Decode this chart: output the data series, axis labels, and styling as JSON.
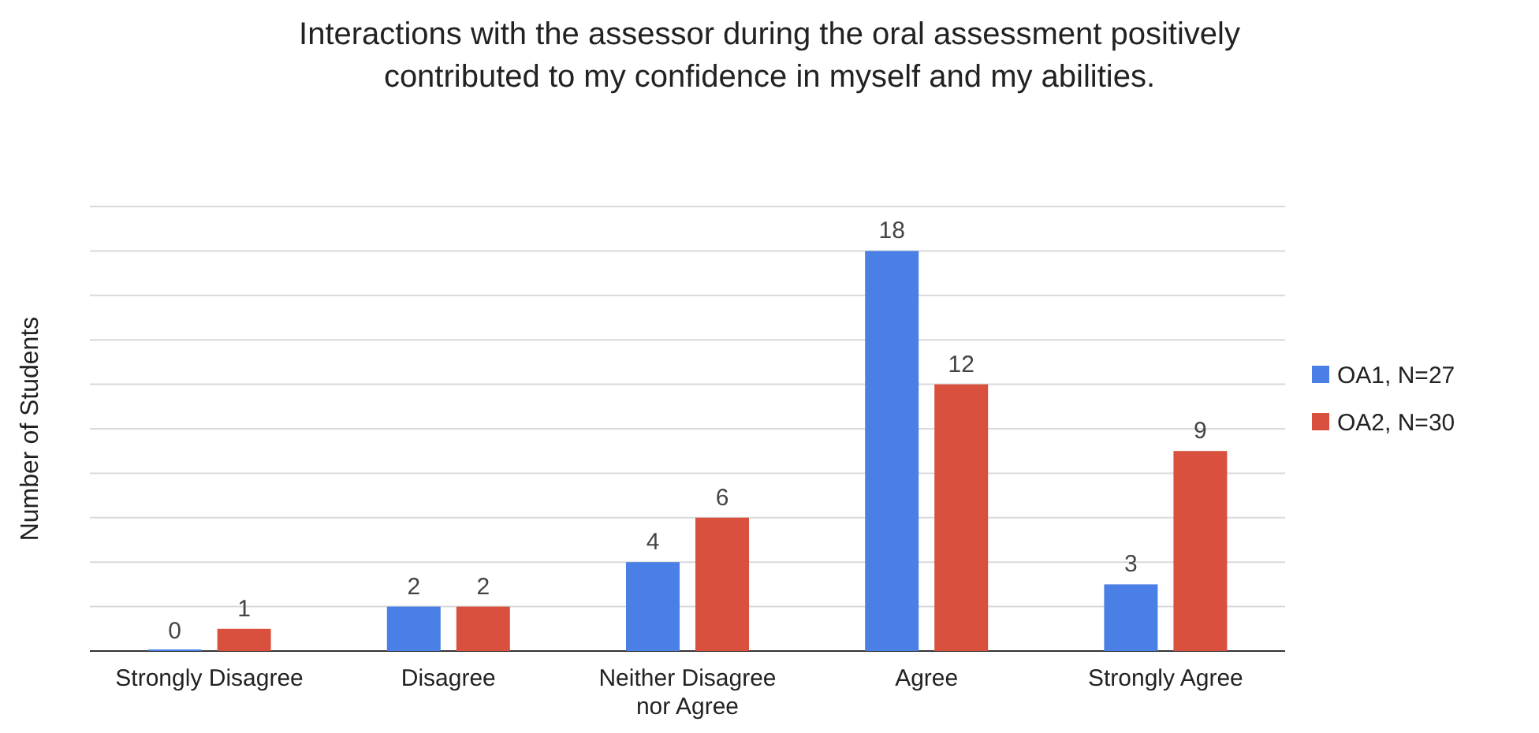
{
  "chart_data": {
    "type": "bar",
    "title": "Interactions with the assessor during the oral assessment positively contributed to my confidence in myself and my abilities.",
    "ylabel": "Number of Students",
    "categories": [
      "Strongly Disagree",
      "Disagree",
      "Neither Disagree nor Agree",
      "Agree",
      "Strongly Agree"
    ],
    "series": [
      {
        "name": "OA1, N=27",
        "color": "#4a7fe6",
        "values": [
          0,
          2,
          4,
          18,
          3
        ]
      },
      {
        "name": "OA2, N=30",
        "color": "#d9503f",
        "values": [
          1,
          2,
          6,
          12,
          9
        ]
      }
    ],
    "ylim": [
      0,
      20
    ],
    "yticks": [
      {
        "value": 0,
        "label": null
      },
      {
        "value": 2,
        "label": null
      },
      {
        "value": 4,
        "label": null
      },
      {
        "value": 6,
        "label": null
      },
      {
        "value": 8,
        "label": null
      },
      {
        "value": 10,
        "label": null
      },
      {
        "value": 12,
        "label": null
      },
      {
        "value": 14,
        "label": null
      },
      {
        "value": 16,
        "label": null
      },
      {
        "value": 18,
        "label": null
      },
      {
        "value": 20,
        "label": null
      }
    ],
    "tick_labels": "x",
    "grid": "y",
    "legend": "right",
    "data_labels": true
  }
}
